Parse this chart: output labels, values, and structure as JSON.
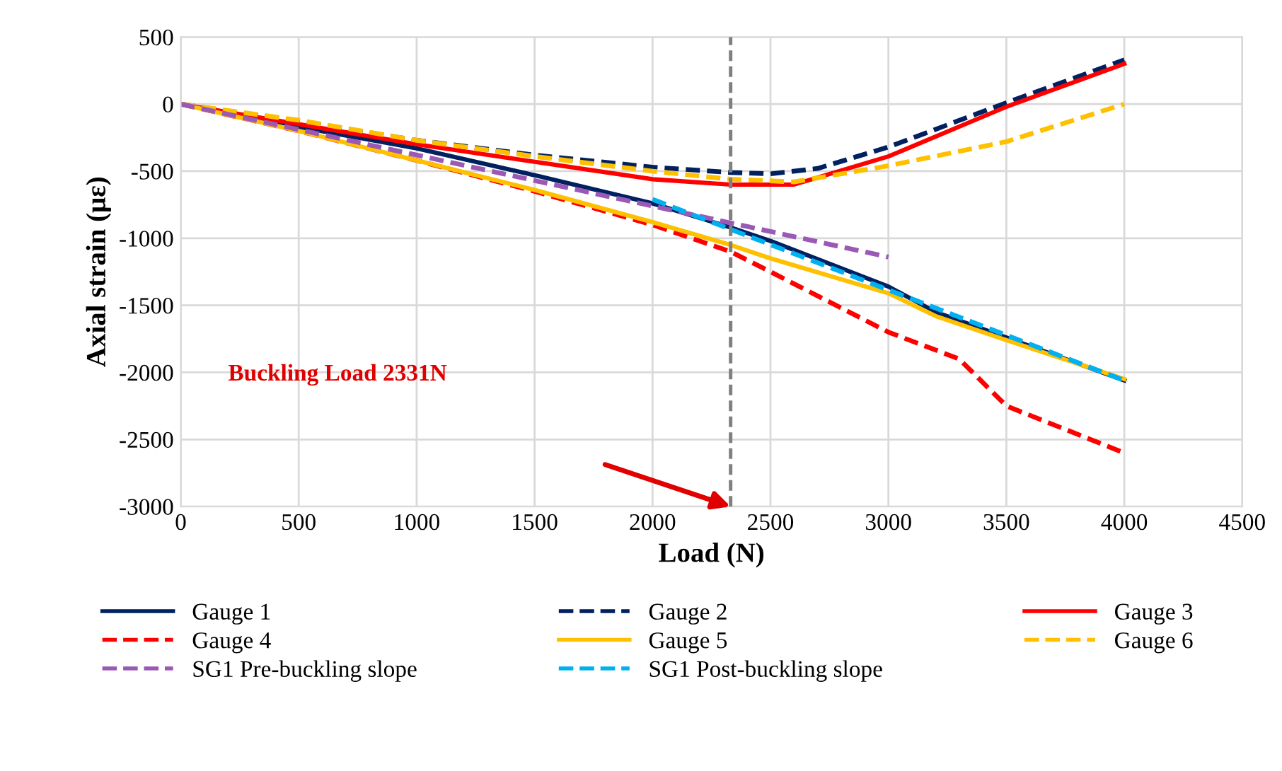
{
  "chart_data": {
    "type": "line",
    "xlabel": "Load (N)",
    "ylabel": "Axial strain (με)",
    "xlim": [
      0,
      4500
    ],
    "xticks": [
      0,
      500,
      1000,
      1500,
      2000,
      2500,
      3000,
      3500,
      4000,
      4500
    ],
    "ylim": [
      -3000,
      500
    ],
    "yticks": [
      -3000,
      -2500,
      -2000,
      -1500,
      -1000,
      -500,
      0,
      500
    ],
    "grid": true,
    "legend": "bottom",
    "marker": "none",
    "ref_lines": [
      {
        "axis": "x",
        "value": 2331,
        "color": "#808080",
        "line_style": "dashed"
      }
    ],
    "annotations": [
      "Buckling Load 2331N"
    ],
    "series": [
      {
        "name": "Gauge 1",
        "color": "#002060",
        "line_style": "solid",
        "x": [
          0,
          500,
          1000,
          1500,
          2000,
          2331,
          2500,
          3000,
          3200,
          3500,
          4000
        ],
        "values": [
          0,
          -170,
          -330,
          -530,
          -740,
          -920,
          -1020,
          -1360,
          -1550,
          -1740,
          -2060
        ]
      },
      {
        "name": "Gauge 2",
        "color": "#002060",
        "line_style": "dashed",
        "x": [
          0,
          500,
          1000,
          1500,
          2000,
          2331,
          2500,
          2700,
          3000,
          3500,
          4000
        ],
        "values": [
          0,
          -130,
          -270,
          -380,
          -470,
          -510,
          -520,
          -480,
          -320,
          10,
          330
        ]
      },
      {
        "name": "Gauge 3",
        "color": "#ff0000",
        "line_style": "solid",
        "x": [
          0,
          500,
          1000,
          1500,
          2000,
          2331,
          2600,
          3000,
          3500,
          4000
        ],
        "values": [
          0,
          -150,
          -300,
          -430,
          -560,
          -600,
          -600,
          -390,
          -20,
          300
        ]
      },
      {
        "name": "Gauge 4",
        "color": "#ff0000",
        "line_style": "dashed",
        "x": [
          0,
          500,
          1000,
          1500,
          2000,
          2331,
          2500,
          3000,
          3300,
          3500,
          4000
        ],
        "values": [
          0,
          -200,
          -420,
          -650,
          -900,
          -1100,
          -1250,
          -1700,
          -1900,
          -2250,
          -2600
        ]
      },
      {
        "name": "Gauge 5",
        "color": "#ffc000",
        "line_style": "solid",
        "x": [
          0,
          500,
          1000,
          1500,
          2000,
          2331,
          2500,
          3000,
          3200,
          3500,
          4000
        ],
        "values": [
          0,
          -200,
          -420,
          -640,
          -880,
          -1050,
          -1150,
          -1410,
          -1580,
          -1760,
          -2050
        ]
      },
      {
        "name": "Gauge 6",
        "color": "#ffc000",
        "line_style": "dashed",
        "x": [
          0,
          500,
          1000,
          1500,
          2000,
          2331,
          2600,
          3000,
          3500,
          4000
        ],
        "values": [
          0,
          -120,
          -270,
          -390,
          -500,
          -560,
          -580,
          -460,
          -280,
          0
        ]
      },
      {
        "name": "SG1 Pre-buckling slope",
        "color": "#9b59b6",
        "line_style": "dashed",
        "x": [
          0,
          3000
        ],
        "values": [
          0,
          -1140
        ]
      },
      {
        "name": "SG1 Post-buckling slope",
        "color": "#00b0f0",
        "line_style": "dashed",
        "x": [
          2000,
          4000
        ],
        "values": [
          -710,
          -2060
        ]
      }
    ]
  }
}
